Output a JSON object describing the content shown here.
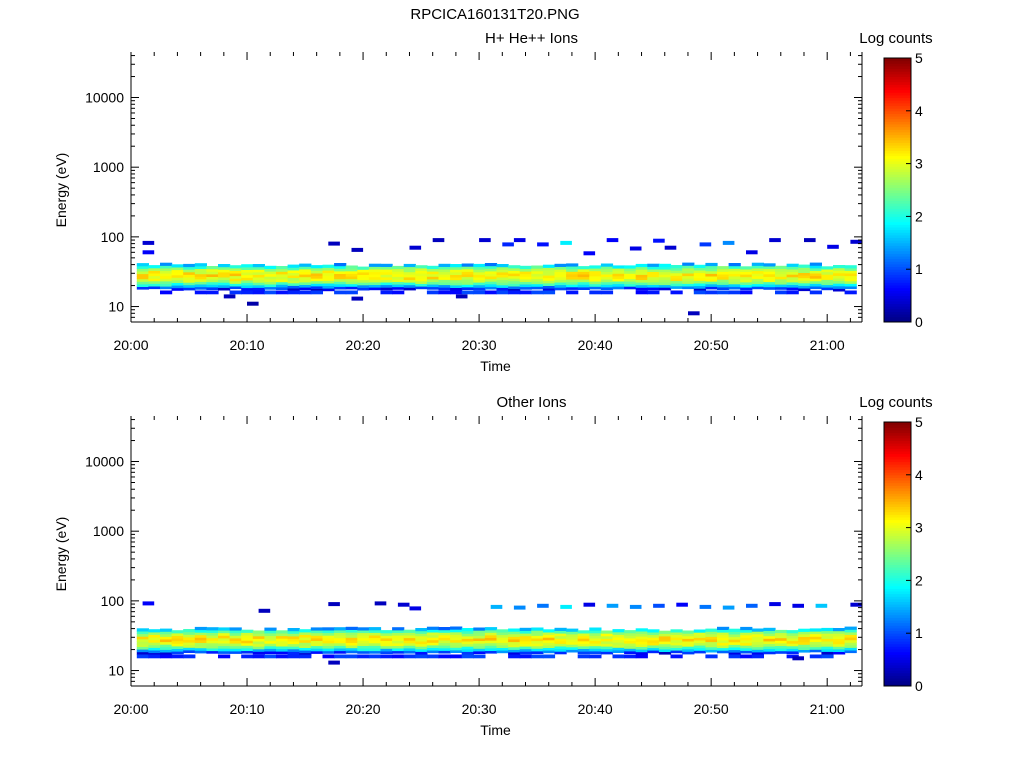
{
  "figure_title": "RPCICA160131T20.PNG",
  "chart_data": [
    {
      "type": "heatmap",
      "title": "H+ He++ Ions",
      "xlabel": "Time",
      "ylabel": "Energy (eV)",
      "x_ticks": [
        "20:00",
        "20:10",
        "20:20",
        "20:30",
        "20:40",
        "20:50",
        "21:00"
      ],
      "x_range": [
        "20:00",
        "21:03"
      ],
      "y_scale": "log",
      "y_ticks": [
        10,
        100,
        1000,
        10000
      ],
      "y_tick_labels": [
        "10",
        "100",
        "1000",
        "10000"
      ],
      "y_range": [
        6,
        45000
      ],
      "colorbar": {
        "label": "Log counts",
        "range": [
          0,
          5
        ],
        "ticks": [
          "0",
          "1",
          "2",
          "3",
          "4",
          "5"
        ],
        "colormap": "jet"
      },
      "band": {
        "peak_energy": 28,
        "low_edge": 17,
        "high_edge": 40,
        "peak_log_counts": 3.2
      },
      "sparse_points": [
        {
          "time": "20:01",
          "energy": 82,
          "log_counts": 0.4
        },
        {
          "time": "20:01",
          "energy": 60,
          "log_counts": 0.6
        },
        {
          "time": "20:08",
          "energy": 14,
          "log_counts": 0.3
        },
        {
          "time": "20:10",
          "energy": 11,
          "log_counts": 0.2
        },
        {
          "time": "20:17",
          "energy": 80,
          "log_counts": 0.3
        },
        {
          "time": "20:19",
          "energy": 13,
          "log_counts": 0.3
        },
        {
          "time": "20:19",
          "energy": 65,
          "log_counts": 0.3
        },
        {
          "time": "20:24",
          "energy": 70,
          "log_counts": 0.4
        },
        {
          "time": "20:26",
          "energy": 90,
          "log_counts": 0.3
        },
        {
          "time": "20:28",
          "energy": 14,
          "log_counts": 0.3
        },
        {
          "time": "20:30",
          "energy": 90,
          "log_counts": 0.4
        },
        {
          "time": "20:32",
          "energy": 78,
          "log_counts": 0.8
        },
        {
          "time": "20:33",
          "energy": 90,
          "log_counts": 0.5
        },
        {
          "time": "20:35",
          "energy": 78,
          "log_counts": 0.7
        },
        {
          "time": "20:37",
          "energy": 82,
          "log_counts": 1.8
        },
        {
          "time": "20:39",
          "energy": 58,
          "log_counts": 0.6
        },
        {
          "time": "20:41",
          "energy": 90,
          "log_counts": 0.6
        },
        {
          "time": "20:43",
          "energy": 68,
          "log_counts": 0.5
        },
        {
          "time": "20:45",
          "energy": 88,
          "log_counts": 0.7
        },
        {
          "time": "20:46",
          "energy": 70,
          "log_counts": 0.4
        },
        {
          "time": "20:48",
          "energy": 8,
          "log_counts": 0.3
        },
        {
          "time": "20:49",
          "energy": 78,
          "log_counts": 0.9
        },
        {
          "time": "20:51",
          "energy": 82,
          "log_counts": 1.3
        },
        {
          "time": "20:53",
          "energy": 60,
          "log_counts": 0.5
        },
        {
          "time": "20:55",
          "energy": 90,
          "log_counts": 0.4
        },
        {
          "time": "20:58",
          "energy": 90,
          "log_counts": 0.3
        },
        {
          "time": "21:00",
          "energy": 72,
          "log_counts": 0.5
        },
        {
          "time": "21:02",
          "energy": 85,
          "log_counts": 0.4
        }
      ]
    },
    {
      "type": "heatmap",
      "title": "Other Ions",
      "xlabel": "Time",
      "ylabel": "Energy (eV)",
      "x_ticks": [
        "20:00",
        "20:10",
        "20:20",
        "20:30",
        "20:40",
        "20:50",
        "21:00"
      ],
      "x_range": [
        "20:00",
        "21:03"
      ],
      "y_scale": "log",
      "y_ticks": [
        10,
        100,
        1000,
        10000
      ],
      "y_tick_labels": [
        "10",
        "100",
        "1000",
        "10000"
      ],
      "y_range": [
        6,
        45000
      ],
      "colorbar": {
        "label": "Log counts",
        "range": [
          0,
          5
        ],
        "ticks": [
          "0",
          "1",
          "2",
          "3",
          "4",
          "5"
        ],
        "colormap": "jet"
      },
      "band": {
        "peak_energy": 28,
        "low_edge": 17,
        "high_edge": 40,
        "peak_log_counts": 3.2
      },
      "sparse_points": [
        {
          "time": "20:01",
          "energy": 92,
          "log_counts": 0.6
        },
        {
          "time": "20:11",
          "energy": 72,
          "log_counts": 0.3
        },
        {
          "time": "20:17",
          "energy": 90,
          "log_counts": 0.3
        },
        {
          "time": "20:17",
          "energy": 13,
          "log_counts": 0.3
        },
        {
          "time": "20:21",
          "energy": 92,
          "log_counts": 0.3
        },
        {
          "time": "20:23",
          "energy": 88,
          "log_counts": 0.4
        },
        {
          "time": "20:24",
          "energy": 78,
          "log_counts": 0.5
        },
        {
          "time": "20:31",
          "energy": 82,
          "log_counts": 1.5
        },
        {
          "time": "20:33",
          "energy": 80,
          "log_counts": 1.3
        },
        {
          "time": "20:35",
          "energy": 85,
          "log_counts": 1.2
        },
        {
          "time": "20:37",
          "energy": 82,
          "log_counts": 1.8
        },
        {
          "time": "20:39",
          "energy": 88,
          "log_counts": 0.5
        },
        {
          "time": "20:41",
          "energy": 85,
          "log_counts": 1.4
        },
        {
          "time": "20:43",
          "energy": 82,
          "log_counts": 1.3
        },
        {
          "time": "20:45",
          "energy": 85,
          "log_counts": 1.0
        },
        {
          "time": "20:47",
          "energy": 88,
          "log_counts": 0.6
        },
        {
          "time": "20:49",
          "energy": 82,
          "log_counts": 1.2
        },
        {
          "time": "20:51",
          "energy": 80,
          "log_counts": 1.4
        },
        {
          "time": "20:53",
          "energy": 85,
          "log_counts": 1.1
        },
        {
          "time": "20:55",
          "energy": 90,
          "log_counts": 0.5
        },
        {
          "time": "20:57",
          "energy": 85,
          "log_counts": 0.5
        },
        {
          "time": "20:59",
          "energy": 85,
          "log_counts": 1.6
        },
        {
          "time": "21:02",
          "energy": 88,
          "log_counts": 0.4
        },
        {
          "time": "20:57",
          "energy": 15,
          "log_counts": 0.3
        }
      ]
    }
  ]
}
